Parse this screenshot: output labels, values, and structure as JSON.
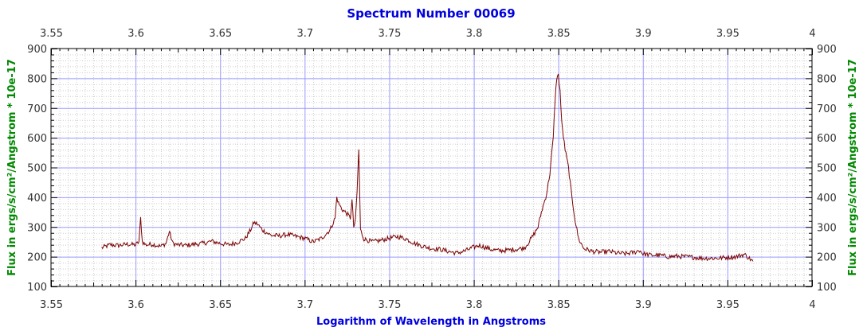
{
  "chart_data": {
    "type": "line",
    "title": "Spectrum Number 00069",
    "xlabel": "Logarithm of Wavelength in Angstroms",
    "ylabel": "Flux in ergs/s/cm²/Angstrom * 10e-17",
    "xlim": [
      3.55,
      4.0
    ],
    "ylim": [
      100,
      900
    ],
    "x_ticks": [
      "3.55",
      "3.6",
      "3.65",
      "3.7",
      "3.75",
      "3.8",
      "3.85",
      "3.9",
      "3.95",
      "4"
    ],
    "y_ticks": [
      "100",
      "200",
      "300",
      "400",
      "500",
      "600",
      "700",
      "800",
      "900"
    ],
    "grid": true,
    "colors": {
      "line": "#7a0000",
      "grid_major": "#9999ff",
      "grid_minor": "#cccccc",
      "title": "#0000dd",
      "ylabel": "#008800"
    },
    "series": [
      {
        "x": [
          3.58,
          3.585,
          3.59,
          3.595,
          3.6,
          3.602,
          3.603,
          3.604,
          3.606,
          3.61,
          3.615,
          3.618,
          3.62,
          3.622,
          3.625,
          3.63,
          3.635,
          3.64,
          3.645,
          3.65,
          3.655,
          3.66,
          3.665,
          3.668,
          3.67,
          3.672,
          3.675,
          3.68,
          3.685,
          3.69,
          3.695,
          3.7,
          3.705,
          3.71,
          3.715,
          3.718,
          3.719,
          3.72,
          3.722,
          3.725,
          3.727,
          3.728,
          3.729,
          3.73,
          3.731,
          3.732,
          3.733,
          3.735,
          3.74,
          3.745,
          3.75,
          3.755,
          3.76,
          3.765,
          3.77,
          3.775,
          3.78,
          3.785,
          3.79,
          3.795,
          3.8,
          3.803,
          3.805,
          3.81,
          3.815,
          3.82,
          3.825,
          3.83,
          3.832,
          3.835,
          3.838,
          3.84,
          3.843,
          3.845,
          3.847,
          3.848,
          3.849,
          3.85,
          3.851,
          3.852,
          3.854,
          3.856,
          3.858,
          3.86,
          3.862,
          3.865,
          3.87,
          3.875,
          3.88,
          3.885,
          3.89,
          3.895,
          3.898,
          3.9,
          3.905,
          3.91,
          3.915,
          3.92,
          3.925,
          3.93,
          3.935,
          3.94,
          3.945,
          3.95,
          3.955,
          3.96,
          3.965
        ],
        "y": [
          230,
          240,
          238,
          242,
          240,
          250,
          330,
          250,
          240,
          242,
          235,
          245,
          285,
          245,
          240,
          238,
          242,
          245,
          252,
          245,
          240,
          248,
          262,
          290,
          315,
          310,
          290,
          272,
          270,
          275,
          268,
          262,
          250,
          262,
          290,
          330,
          400,
          380,
          360,
          345,
          330,
          390,
          300,
          320,
          420,
          560,
          290,
          260,
          250,
          255,
          262,
          268,
          260,
          245,
          235,
          228,
          225,
          218,
          212,
          220,
          232,
          238,
          235,
          225,
          220,
          222,
          225,
          230,
          245,
          270,
          300,
          350,
          410,
          480,
          600,
          720,
          800,
          810,
          760,
          650,
          560,
          500,
          400,
          320,
          260,
          228,
          218,
          215,
          218,
          212,
          210,
          215,
          222,
          210,
          205,
          205,
          200,
          202,
          200,
          198,
          195,
          195,
          195,
          198,
          200,
          208,
          185
        ]
      }
    ]
  }
}
